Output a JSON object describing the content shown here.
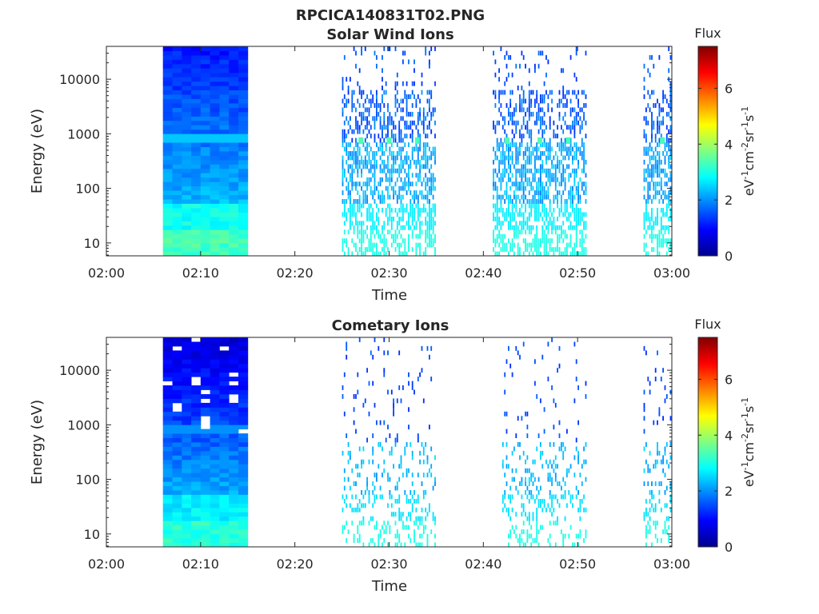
{
  "figure": {
    "filename_title": "RPCICA140831T02.PNG"
  },
  "colormap": {
    "name": "jet",
    "stops": [
      "#00008f",
      "#0000ff",
      "#0080ff",
      "#00ffff",
      "#80ff80",
      "#ffff00",
      "#ff8000",
      "#ff0000",
      "#800000"
    ]
  },
  "chart_data": [
    {
      "type": "heatmap",
      "title": "Solar Wind Ions",
      "xlabel": "Time",
      "ylabel": "Energy (eV)",
      "x_ticks": [
        "02:00",
        "02:10",
        "02:20",
        "02:30",
        "02:40",
        "02:50",
        "03:00"
      ],
      "x_range": [
        "02:00",
        "03:00"
      ],
      "y_scale": "log",
      "y_ticks": [
        "10",
        "100",
        "1000",
        "10000"
      ],
      "y_range": [
        5.8,
        40000
      ],
      "colorbar": {
        "title": "Flux",
        "label": "eV-1cm-2sr-1s-1",
        "ticks": [
          "0",
          "2",
          "4",
          "6"
        ],
        "range": [
          0,
          7.5
        ]
      },
      "background_block": {
        "x_from": "02:06",
        "x_to": "02:15",
        "low_energy_flux": 3.3,
        "mid_flux": 2.3,
        "high_energy_flux": 1.1,
        "stripe_energy_eV": 750,
        "stripe_flux": 2.4
      },
      "sparse_intervals": [
        {
          "x_from": "02:25",
          "x_to": "02:35",
          "hotspots": [
            [
              "02:27",
              750,
              3.4
            ],
            [
              "02:30",
              750,
              3.4
            ],
            [
              "02:33",
              750,
              3.3
            ]
          ]
        },
        {
          "x_from": "02:41",
          "x_to": "02:51",
          "hotspots": [
            [
              "02:42.5",
              750,
              3.4
            ],
            [
              "02:46",
              750,
              3.4
            ],
            [
              "02:49",
              750,
              3.3
            ]
          ]
        },
        {
          "x_from": "02:57",
          "x_to": "03:00",
          "hotspots": [
            [
              "02:59",
              750,
              3.3
            ]
          ]
        }
      ]
    },
    {
      "type": "heatmap",
      "title": "Cometary Ions",
      "xlabel": "Time",
      "ylabel": "Energy (eV)",
      "x_ticks": [
        "02:00",
        "02:10",
        "02:20",
        "02:30",
        "02:40",
        "02:50",
        "03:00"
      ],
      "x_range": [
        "02:00",
        "03:00"
      ],
      "y_scale": "log",
      "y_ticks": [
        "10",
        "100",
        "1000",
        "10000"
      ],
      "y_range": [
        5.8,
        40000
      ],
      "colorbar": {
        "title": "Flux",
        "label": "eV-1cm-2sr-1s-1",
        "ticks": [
          "0",
          "2",
          "4",
          "6"
        ],
        "range": [
          0,
          7.5
        ]
      },
      "background_block": {
        "x_from": "02:06",
        "x_to": "02:15",
        "low_energy_flux": 3.1,
        "mid_flux": 2.2,
        "high_energy_flux": 0.6,
        "stripe_energy_eV": 750,
        "stripe_flux": 2.0
      },
      "sparse_intervals": [
        {
          "x_from": "02:25",
          "x_to": "02:35",
          "hotspots": []
        },
        {
          "x_from": "02:42",
          "x_to": "02:51",
          "hotspots": []
        },
        {
          "x_from": "02:57",
          "x_to": "03:00",
          "hotspots": []
        }
      ]
    }
  ]
}
